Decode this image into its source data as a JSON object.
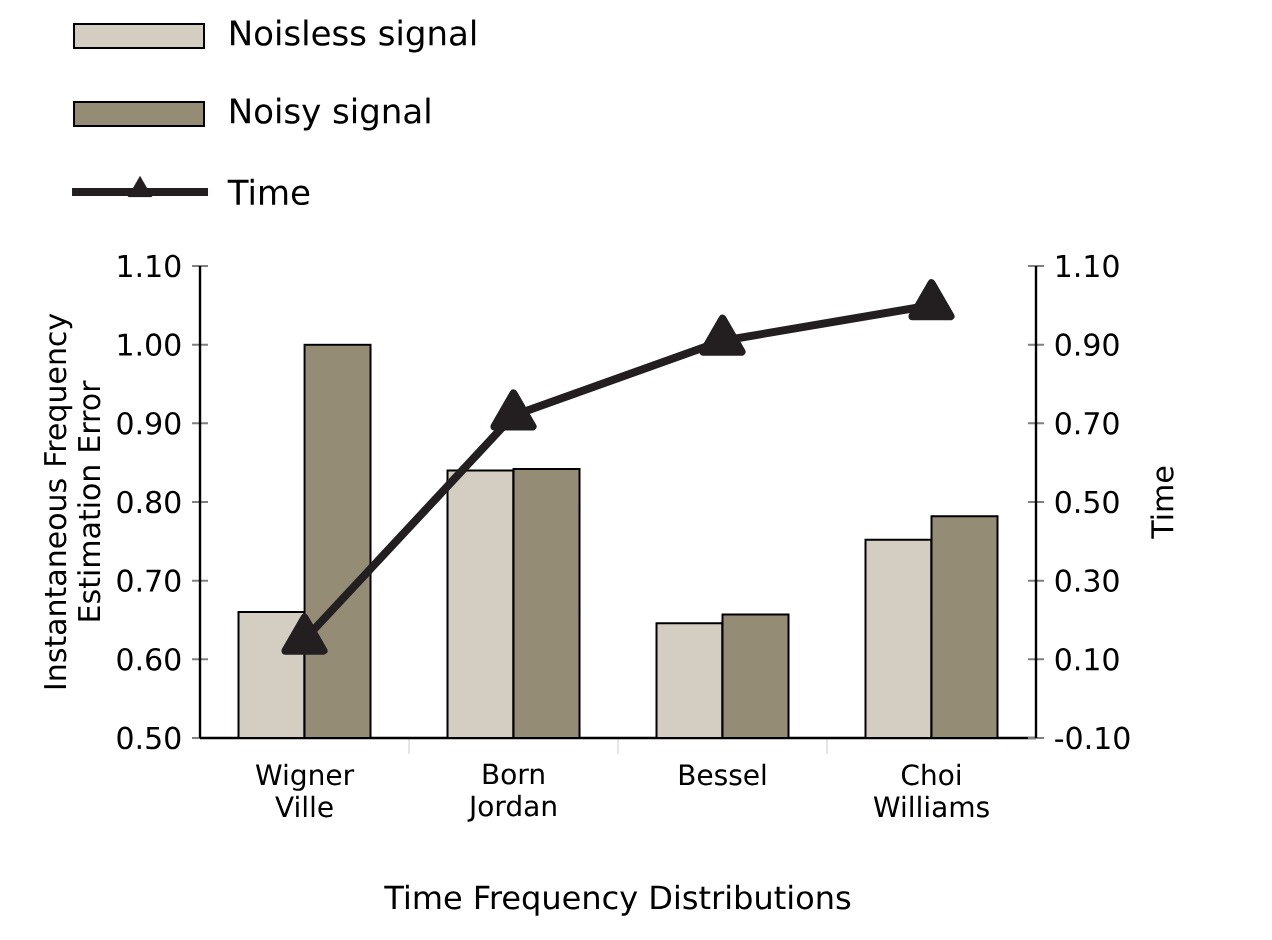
{
  "chart_data": {
    "type": "bar",
    "categories": [
      "Wigner Ville",
      "Born Jordan",
      "Bessel",
      "Choi Williams"
    ],
    "xlabel": "Time Frequency Distributions",
    "ylabel": "Instantaneous Frequency Estimation Error",
    "y2label": "Time",
    "series": [
      {
        "name": "Noisless signal",
        "color": "#d4cdc1",
        "values": [
          0.66,
          0.84,
          0.646,
          0.752
        ]
      },
      {
        "name": "Noisy signal",
        "color": "#958c76",
        "values": [
          1.0,
          0.842,
          0.657,
          0.782
        ]
      },
      {
        "name": "Time",
        "type": "line",
        "axis": "y2",
        "color": "#231f20",
        "marker": "triangle",
        "line_style": "solid",
        "values": [
          0.15,
          0.72,
          0.91,
          1.0
        ]
      }
    ],
    "ylim": [
      0.5,
      1.1
    ],
    "yticks": [
      {
        "value": 0.5,
        "label": "0.50"
      },
      {
        "value": 0.6,
        "label": "0.60"
      },
      {
        "value": 0.7,
        "label": "0.70"
      },
      {
        "value": 0.8,
        "label": "0.80"
      },
      {
        "value": 0.9,
        "label": "0.90"
      },
      {
        "value": 1.0,
        "label": "1.00"
      },
      {
        "value": 1.1,
        "label": "1.10"
      }
    ],
    "y2lim": [
      -0.1,
      1.1
    ],
    "y2ticks": [
      {
        "value": -0.1,
        "label": "-0.10"
      },
      {
        "value": 0.1,
        "label": "0.10"
      },
      {
        "value": 0.3,
        "label": "0.30"
      },
      {
        "value": 0.5,
        "label": "0.50"
      },
      {
        "value": 0.7,
        "label": "0.70"
      },
      {
        "value": 0.9,
        "label": "0.90"
      },
      {
        "value": 1.1,
        "label": "1.10"
      }
    ],
    "legend": "top left",
    "grid": false
  }
}
